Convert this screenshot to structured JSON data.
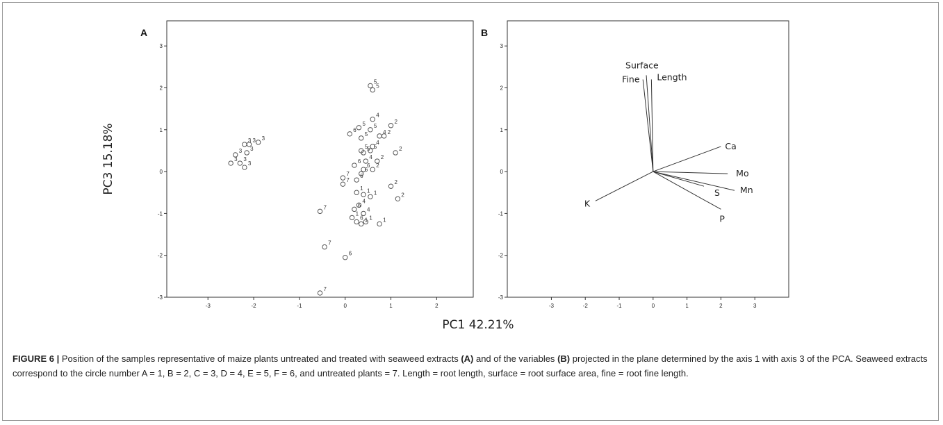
{
  "chart_data": [
    {
      "panel": "A",
      "type": "scatter",
      "ylabel": "PC3 15.18%",
      "xlim": [
        -3.9,
        2.8
      ],
      "ylim": [
        -3.0,
        3.6
      ],
      "xticks": [
        -3,
        -2,
        -1,
        0,
        1,
        2
      ],
      "yticks": [
        3,
        2,
        1,
        0,
        -1,
        -2,
        -3
      ],
      "points": [
        {
          "x": -2.4,
          "y": 0.4,
          "label": "3"
        },
        {
          "x": -2.5,
          "y": 0.2,
          "label": "3"
        },
        {
          "x": -2.2,
          "y": 0.65,
          "label": "3"
        },
        {
          "x": -2.1,
          "y": 0.65,
          "label": "3"
        },
        {
          "x": -1.9,
          "y": 0.7,
          "label": "3"
        },
        {
          "x": -2.15,
          "y": 0.45,
          "label": "3"
        },
        {
          "x": -2.3,
          "y": 0.2,
          "label": "3"
        },
        {
          "x": -2.2,
          "y": 0.1,
          "label": "3"
        },
        {
          "x": 0.55,
          "y": 2.05,
          "label": "5"
        },
        {
          "x": 0.6,
          "y": 1.95,
          "label": "5"
        },
        {
          "x": 0.6,
          "y": 1.25,
          "label": "4"
        },
        {
          "x": 0.3,
          "y": 1.05,
          "label": "5"
        },
        {
          "x": 0.55,
          "y": 1.0,
          "label": "5"
        },
        {
          "x": 0.75,
          "y": 0.85,
          "label": "4"
        },
        {
          "x": 1.0,
          "y": 1.1,
          "label": "2"
        },
        {
          "x": 0.85,
          "y": 0.85,
          "label": "2"
        },
        {
          "x": 0.1,
          "y": 0.9,
          "label": "6"
        },
        {
          "x": 0.35,
          "y": 0.8,
          "label": "5"
        },
        {
          "x": 0.6,
          "y": 0.6,
          "label": "4"
        },
        {
          "x": 0.35,
          "y": 0.5,
          "label": "5"
        },
        {
          "x": 0.4,
          "y": 0.45,
          "label": "5"
        },
        {
          "x": 0.55,
          "y": 0.5,
          "label": "5"
        },
        {
          "x": 1.1,
          "y": 0.45,
          "label": "2"
        },
        {
          "x": 0.45,
          "y": 0.25,
          "label": "4"
        },
        {
          "x": 0.7,
          "y": 0.25,
          "label": "2"
        },
        {
          "x": 0.2,
          "y": 0.15,
          "label": "6"
        },
        {
          "x": 0.4,
          "y": 0.05,
          "label": "6"
        },
        {
          "x": 0.6,
          "y": 0.05,
          "label": "2"
        },
        {
          "x": 0.25,
          "y": -0.2,
          "label": "6"
        },
        {
          "x": 0.35,
          "y": -0.05,
          "label": "6"
        },
        {
          "x": -0.05,
          "y": -0.15,
          "label": "7"
        },
        {
          "x": -0.05,
          "y": -0.3,
          "label": "7"
        },
        {
          "x": 0.25,
          "y": -0.5,
          "label": "1"
        },
        {
          "x": 0.4,
          "y": -0.55,
          "label": "1"
        },
        {
          "x": 0.55,
          "y": -0.6,
          "label": "1"
        },
        {
          "x": 1.0,
          "y": -0.35,
          "label": "2"
        },
        {
          "x": 1.15,
          "y": -0.65,
          "label": "2"
        },
        {
          "x": 0.3,
          "y": -0.8,
          "label": "4"
        },
        {
          "x": 0.2,
          "y": -0.9,
          "label": "6"
        },
        {
          "x": 0.4,
          "y": -1.0,
          "label": "4"
        },
        {
          "x": 0.15,
          "y": -1.1,
          "label": "1"
        },
        {
          "x": 0.25,
          "y": -1.2,
          "label": "6"
        },
        {
          "x": 0.35,
          "y": -1.25,
          "label": "1"
        },
        {
          "x": 0.45,
          "y": -1.2,
          "label": "1"
        },
        {
          "x": 0.75,
          "y": -1.25,
          "label": "1"
        },
        {
          "x": -0.55,
          "y": -0.95,
          "label": "7"
        },
        {
          "x": -0.45,
          "y": -1.8,
          "label": "7"
        },
        {
          "x": 0.0,
          "y": -2.05,
          "label": "6"
        },
        {
          "x": -0.55,
          "y": -2.9,
          "label": "7"
        }
      ]
    },
    {
      "panel": "B",
      "type": "biplot",
      "xlabel": "PC1 42.21%",
      "xlim": [
        -4.3,
        4.0
      ],
      "ylim": [
        -3.0,
        3.6
      ],
      "xticks": [
        -3,
        -2,
        -1,
        0,
        1,
        2,
        3
      ],
      "yticks": [
        3,
        2,
        1,
        0,
        -1,
        -2,
        -3
      ],
      "vectors": [
        {
          "name": "Surface",
          "x": -0.2,
          "y": 2.3
        },
        {
          "name": "Fine",
          "x": -0.3,
          "y": 2.2
        },
        {
          "name": "Length",
          "x": -0.05,
          "y": 2.2
        },
        {
          "name": "Ca",
          "x": 2.0,
          "y": 0.6
        },
        {
          "name": "Mo",
          "x": 2.2,
          "y": -0.05
        },
        {
          "name": "Mn",
          "x": 2.4,
          "y": -0.45
        },
        {
          "name": "S",
          "x": 1.5,
          "y": -0.35
        },
        {
          "name": "P",
          "x": 2.0,
          "y": -0.9
        },
        {
          "name": "K",
          "x": -1.7,
          "y": -0.7
        }
      ]
    }
  ],
  "caption": {
    "figure_label": "FIGURE 6 |",
    "t1": " Position of the samples representative of maize plants untreated and treated with seaweed extracts ",
    "b1": "(A)",
    "t2": " and of the variables ",
    "b2": "(B)",
    "t3": " projected in the plane determined by the axis 1 with axis 3 of the PCA. Seaweed extracts correspond to the circle number A = 1, B = 2, C = 3, D = 4, E = 5, F = 6, and untreated plants = 7. Length = root length, surface = root surface area, fine = root fine length."
  }
}
